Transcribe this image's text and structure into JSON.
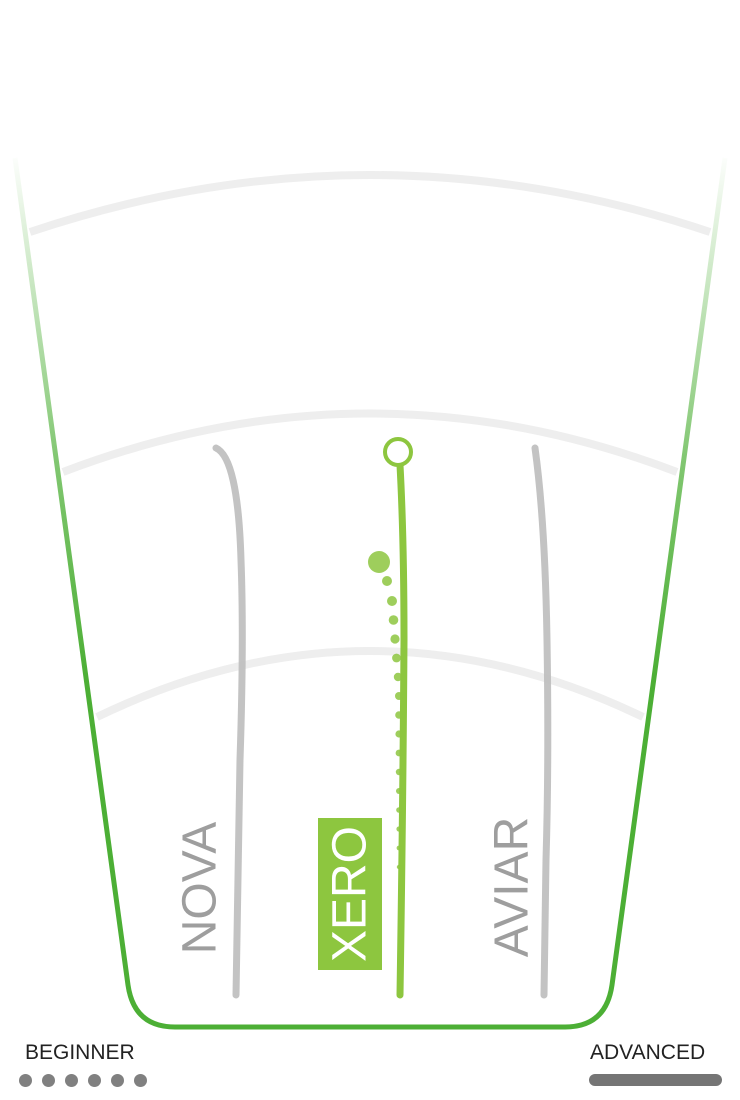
{
  "discs": [
    {
      "name": "NOVA",
      "selected": false
    },
    {
      "name": "XERO",
      "selected": true
    },
    {
      "name": "AVIAR",
      "selected": false
    }
  ],
  "scale": {
    "beginner_label": "BEGINNER",
    "advanced_label": "ADVANCED",
    "beginner_dots": 6
  },
  "colors": {
    "accent": "#8dc63f",
    "outline": "#4caf35",
    "inactive": "#bdbdbd",
    "inactive_text": "#9e9e9e",
    "arc": "#eeeeee",
    "scale": "#808080"
  }
}
